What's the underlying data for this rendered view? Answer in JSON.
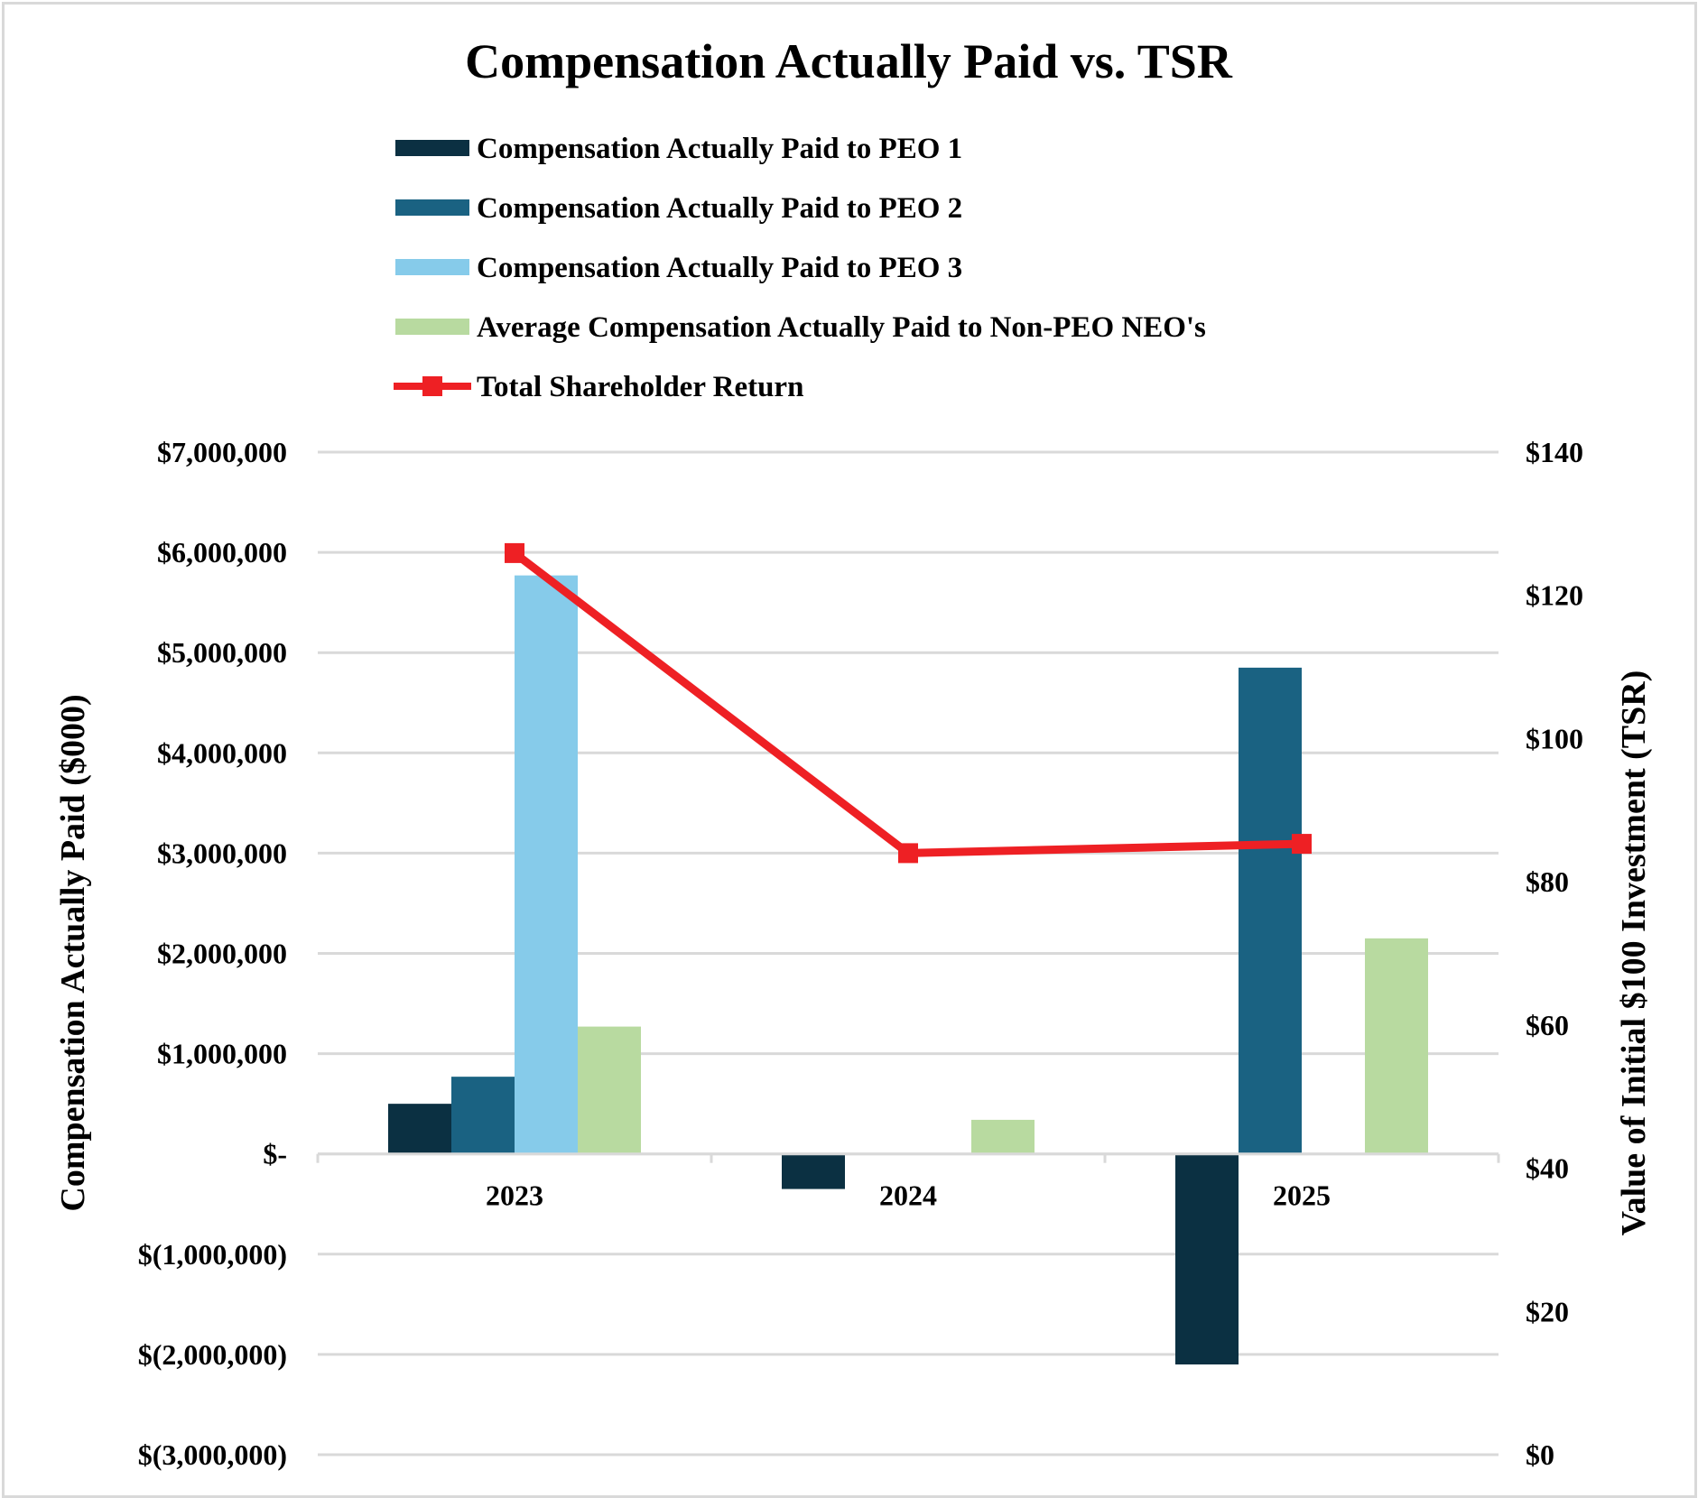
{
  "chart_data": {
    "type": "bar",
    "title": "Compensation Actually Paid vs. TSR",
    "categories": [
      "2023",
      "2024",
      "2025"
    ],
    "series": [
      {
        "name": "Compensation Actually Paid to PEO 1",
        "kind": "bar",
        "color": "#0b3042",
        "values": [
          500000,
          -350000,
          -2100000
        ]
      },
      {
        "name": "Compensation Actually Paid to PEO 2",
        "kind": "bar",
        "color": "#1a6282",
        "values": [
          770000,
          null,
          4850000
        ]
      },
      {
        "name": "Compensation Actually Paid to PEO 3",
        "kind": "bar",
        "color": "#86cbea",
        "values": [
          5770000,
          null,
          null
        ]
      },
      {
        "name": "Average Compensation Actually Paid to Non-PEO NEO's",
        "kind": "bar",
        "color": "#b8daa0",
        "values": [
          1270000,
          340000,
          2150000
        ]
      },
      {
        "name": "Total Shareholder Return",
        "kind": "line",
        "axis": "right",
        "color": "#ee2024",
        "values": [
          125.9,
          84.0,
          85.3
        ]
      }
    ],
    "ylabel": "Compensation Actually Paid ($000)",
    "y2label": "Value of Initial $100 Investment (TSR)",
    "ylim": [
      -3000000,
      7000000
    ],
    "y2lim": [
      0,
      140
    ],
    "yticks": [
      7000000,
      6000000,
      5000000,
      4000000,
      3000000,
      2000000,
      1000000,
      0,
      -1000000,
      -2000000,
      -3000000
    ],
    "ytick_labels": [
      "$7,000,000",
      "$6,000,000",
      "$5,000,000",
      "$4,000,000",
      "$3,000,000",
      "$2,000,000",
      "$1,000,000",
      "$-",
      "$(1,000,000)",
      "$(2,000,000)",
      "$(3,000,000)"
    ],
    "y2ticks": [
      140,
      120,
      100,
      80,
      60,
      40,
      20,
      0
    ],
    "y2tick_labels": [
      "$140",
      "$120",
      "$100",
      "$80",
      "$60",
      "$40",
      "$20",
      "$0"
    ],
    "grid": true,
    "legend_position": "top"
  }
}
